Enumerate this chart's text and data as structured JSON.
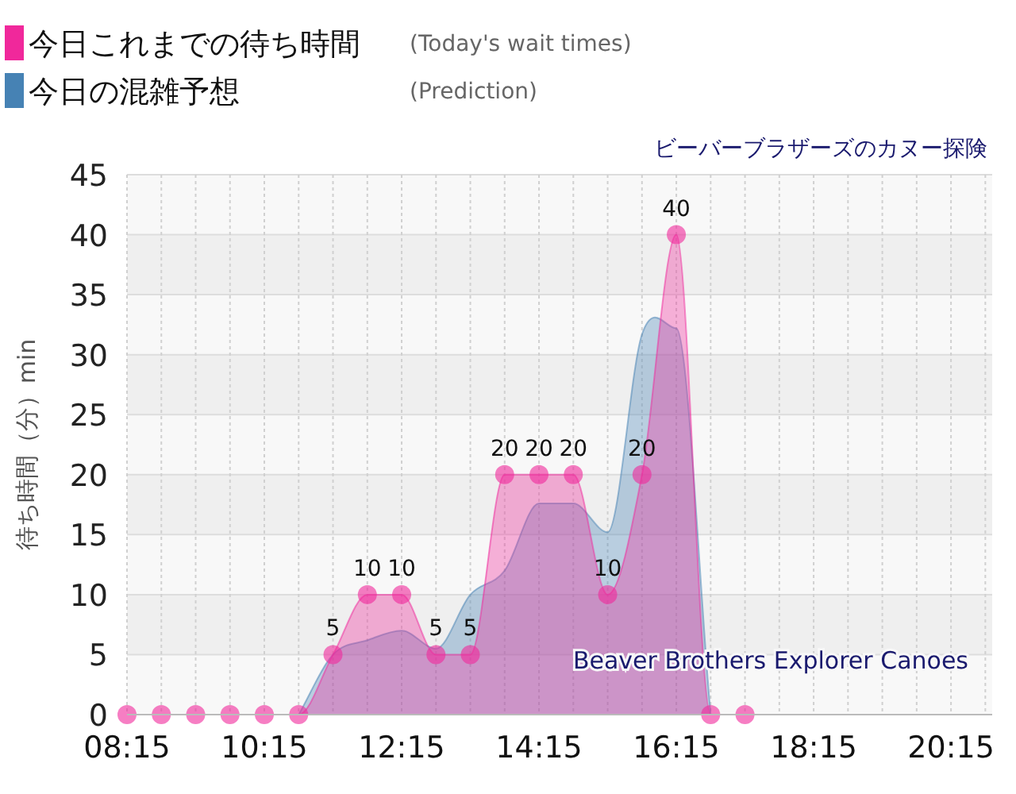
{
  "chart_data": {
    "type": "area",
    "ylabel": "待ち時間（分）min",
    "x": [
      8.25,
      8.75,
      9.25,
      9.75,
      10.25,
      10.75,
      11.25,
      11.75,
      12.25,
      12.75,
      13.25,
      13.75,
      14.25,
      14.75,
      15.25,
      15.75,
      16.25,
      16.75,
      17.25
    ],
    "series": [
      {
        "name": "今日の混雑予想",
        "color": "#4682b4",
        "marker": "none",
        "values": [
          null,
          null,
          null,
          null,
          null,
          0,
          5,
          6.2,
          7,
          5.5,
          10,
          12,
          17.6,
          17.6,
          15.2,
          31.7,
          32.2,
          0,
          null
        ]
      },
      {
        "name": "今日これまでの待ち時間",
        "color": "#f0289b",
        "marker": "circle",
        "values": [
          0,
          0,
          0,
          0,
          0,
          0,
          5,
          10,
          10,
          5,
          5,
          20,
          20,
          20,
          10,
          20,
          40,
          0,
          0
        ],
        "value_labels": [
          null,
          null,
          null,
          null,
          null,
          null,
          "5",
          "10",
          "10",
          "5",
          "5",
          "20",
          "20",
          "20",
          "10",
          "20",
          "40",
          null,
          null
        ]
      }
    ],
    "xlim": [
      8.25,
      20.85
    ],
    "xticks": [
      {
        "value": 8.25,
        "label": "08:15"
      },
      {
        "value": 10.25,
        "label": "10:15"
      },
      {
        "value": 12.25,
        "label": "12:15"
      },
      {
        "value": 14.25,
        "label": "14:15"
      },
      {
        "value": 16.25,
        "label": "16:15"
      },
      {
        "value": 18.25,
        "label": "18:15"
      },
      {
        "value": 20.25,
        "label": "20:15"
      }
    ],
    "ylim": [
      0,
      45
    ],
    "yticks": [
      0,
      5,
      10,
      15,
      20,
      25,
      30,
      35,
      40,
      45
    ],
    "grid": true,
    "legend": "top",
    "annotations": [
      "ビーバーブラザーズのカヌー探険",
      "Beaver Brothers Explorer Canoes",
      "(Today's wait times)",
      "(Prediction)"
    ]
  }
}
